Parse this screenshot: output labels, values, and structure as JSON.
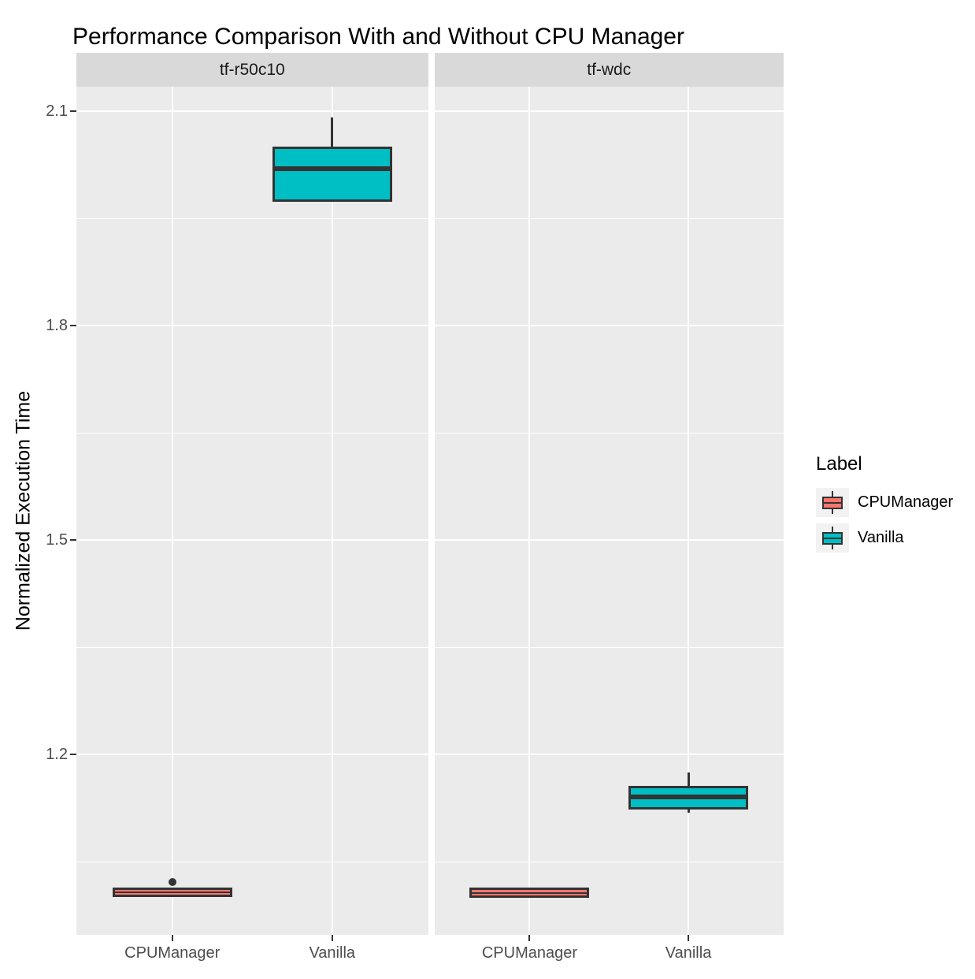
{
  "title": "Performance Comparison With and Without CPU Manager",
  "y_axis": {
    "title": "Normalized Execution Time",
    "tick_labels": [
      "2.1",
      "1.8",
      "1.5",
      "1.2"
    ],
    "tick_values": [
      2.1,
      1.8,
      1.5,
      1.2
    ],
    "minor_values": [
      1.95,
      1.65,
      1.35,
      1.05
    ]
  },
  "x_axis": {
    "tick_labels": [
      "CPUManager",
      "Vanilla"
    ]
  },
  "legend": {
    "title": "Label",
    "entries": [
      {
        "label": "CPUManager",
        "color": "#F8766D"
      },
      {
        "label": "Vanilla",
        "color": "#00BFC4"
      }
    ]
  },
  "colors": {
    "panel_bg": "#EBEBEB",
    "strip_bg": "#D9D9D9",
    "gridline": "#FFFFFF",
    "box_outline": "#333333",
    "cpumanager_fill": "#F8766D",
    "vanilla_fill": "#00BFC4",
    "axis_text": "#4D4D4D",
    "text": "#000000",
    "legend_key_bg": "#F2F2F2"
  },
  "chart_data": {
    "type": "boxplot",
    "title": "Performance Comparison With and Without CPU Manager",
    "xlabel": "",
    "ylabel": "Normalized Execution Time",
    "ylim": [
      0.9475,
      2.1342
    ],
    "y_major_ticks": [
      2.1,
      1.8,
      1.5,
      1.2
    ],
    "y_minor_ticks": [
      1.95,
      1.65,
      1.35,
      1.05
    ],
    "categories": [
      "CPUManager",
      "Vanilla"
    ],
    "grid": true,
    "legend_title": "Label",
    "legend_position": "right",
    "facets": [
      {
        "name": "tf-r50c10",
        "boxes": [
          {
            "category": "CPUManager",
            "series": "CPUManager",
            "fill": "#F8766D",
            "whisker_low": 1.002,
            "q1": 1.004,
            "median": 1.0075,
            "q3": 1.01,
            "whisker_high": 1.011,
            "outliers": [
              1.021
            ]
          },
          {
            "category": "Vanilla",
            "series": "Vanilla",
            "fill": "#00BFC4",
            "whisker_low": 1.977,
            "q1": 1.977,
            "median": 2.019,
            "q3": 2.047,
            "whisker_high": 2.091,
            "outliers": []
          }
        ]
      },
      {
        "name": "tf-wdc",
        "boxes": [
          {
            "category": "CPUManager",
            "series": "CPUManager",
            "fill": "#F8766D",
            "whisker_low": 1.0,
            "q1": 1.003,
            "median": 1.0065,
            "q3": 1.01,
            "whisker_high": 1.011,
            "outliers": []
          },
          {
            "category": "Vanilla",
            "series": "Vanilla",
            "fill": "#00BFC4",
            "whisker_low": 1.118,
            "q1": 1.126,
            "median": 1.14,
            "q3": 1.153,
            "whisker_high": 1.175,
            "outliers": []
          }
        ]
      }
    ]
  }
}
